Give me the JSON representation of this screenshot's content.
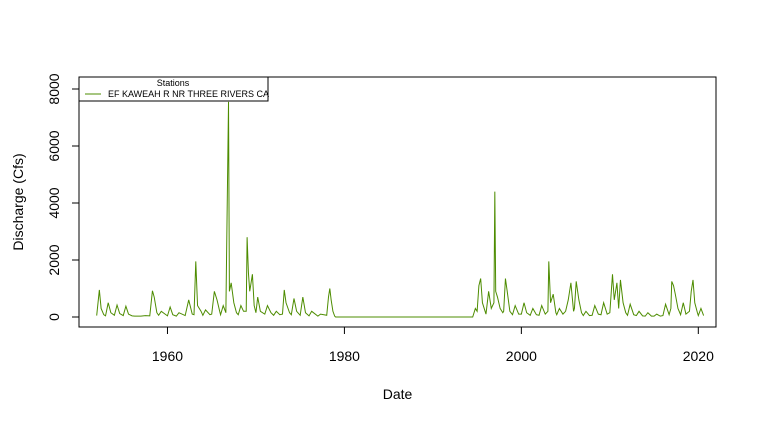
{
  "chart_data": {
    "type": "line",
    "title": "",
    "xlabel": "Date",
    "ylabel": "Discharge (Cfs)",
    "xlim": [
      1950,
      2022
    ],
    "ylim": [
      0,
      8000
    ],
    "x_ticks": [
      1960,
      1980,
      2000,
      2020
    ],
    "y_ticks": [
      0,
      2000,
      4000,
      6000,
      8000
    ],
    "grid": false,
    "legend": {
      "title": "Stations",
      "placement": "top-left",
      "entries": [
        "EF KAWEAH R NR THREE RIVERS CA"
      ]
    },
    "series": [
      {
        "name": "EF KAWEAH R NR THREE RIVERS CA",
        "color": "#4d8c00",
        "peaks": [
          [
            1952.0,
            50
          ],
          [
            1952.3,
            950
          ],
          [
            1952.5,
            300
          ],
          [
            1952.8,
            80
          ],
          [
            1953.0,
            40
          ],
          [
            1953.3,
            500
          ],
          [
            1953.6,
            150
          ],
          [
            1954.0,
            60
          ],
          [
            1954.3,
            420
          ],
          [
            1954.6,
            120
          ],
          [
            1955.0,
            50
          ],
          [
            1955.3,
            380
          ],
          [
            1955.6,
            100
          ],
          [
            1956.0,
            40
          ],
          [
            1956.3,
            30
          ],
          [
            1957.0,
            30
          ],
          [
            1957.5,
            50
          ],
          [
            1958.0,
            40
          ],
          [
            1958.3,
            920
          ],
          [
            1958.5,
            700
          ],
          [
            1958.8,
            150
          ],
          [
            1959.0,
            60
          ],
          [
            1959.3,
            200
          ],
          [
            1960.0,
            40
          ],
          [
            1960.3,
            350
          ],
          [
            1960.6,
            80
          ],
          [
            1961.0,
            30
          ],
          [
            1961.3,
            150
          ],
          [
            1962.0,
            50
          ],
          [
            1962.4,
            600
          ],
          [
            1962.8,
            100
          ],
          [
            1963.0,
            80
          ],
          [
            1963.2,
            1950
          ],
          [
            1963.4,
            400
          ],
          [
            1963.8,
            200
          ],
          [
            1964.0,
            60
          ],
          [
            1964.3,
            250
          ],
          [
            1964.8,
            80
          ],
          [
            1965.0,
            100
          ],
          [
            1965.3,
            900
          ],
          [
            1965.6,
            600
          ],
          [
            1965.9,
            200
          ],
          [
            1966.0,
            80
          ],
          [
            1966.3,
            400
          ],
          [
            1966.6,
            150
          ],
          [
            1966.9,
            7550
          ],
          [
            1967.0,
            900
          ],
          [
            1967.2,
            1200
          ],
          [
            1967.5,
            500
          ],
          [
            1967.8,
            150
          ],
          [
            1968.0,
            80
          ],
          [
            1968.3,
            400
          ],
          [
            1968.6,
            200
          ],
          [
            1968.9,
            200
          ],
          [
            1969.0,
            2800
          ],
          [
            1969.15,
            1550
          ],
          [
            1969.3,
            900
          ],
          [
            1969.6,
            1500
          ],
          [
            1969.8,
            400
          ],
          [
            1970.0,
            150
          ],
          [
            1970.2,
            700
          ],
          [
            1970.5,
            200
          ],
          [
            1971.0,
            100
          ],
          [
            1971.3,
            400
          ],
          [
            1971.7,
            150
          ],
          [
            1972.0,
            60
          ],
          [
            1972.3,
            200
          ],
          [
            1972.7,
            80
          ],
          [
            1973.0,
            100
          ],
          [
            1973.2,
            950
          ],
          [
            1973.4,
            500
          ],
          [
            1973.8,
            150
          ],
          [
            1974.0,
            80
          ],
          [
            1974.3,
            650
          ],
          [
            1974.6,
            200
          ],
          [
            1975.0,
            60
          ],
          [
            1975.3,
            700
          ],
          [
            1975.6,
            150
          ],
          [
            1976.0,
            40
          ],
          [
            1976.3,
            200
          ],
          [
            1977.0,
            30
          ],
          [
            1977.3,
            100
          ],
          [
            1978.0,
            60
          ],
          [
            1978.2,
            700
          ],
          [
            1978.35,
            1000
          ],
          [
            1978.5,
            600
          ],
          [
            1978.7,
            200
          ],
          [
            1978.9,
            30
          ],
          [
            1979.0,
            0
          ],
          [
            1994.5,
            0
          ],
          [
            1994.8,
            300
          ],
          [
            1995.0,
            200
          ],
          [
            1995.2,
            1100
          ],
          [
            1995.4,
            1350
          ],
          [
            1995.6,
            500
          ],
          [
            1995.9,
            200
          ],
          [
            1996.0,
            100
          ],
          [
            1996.3,
            900
          ],
          [
            1996.6,
            300
          ],
          [
            1996.9,
            500
          ],
          [
            1997.0,
            4400
          ],
          [
            1997.1,
            900
          ],
          [
            1997.3,
            700
          ],
          [
            1997.6,
            300
          ],
          [
            1997.9,
            150
          ],
          [
            1998.0,
            200
          ],
          [
            1998.2,
            1350
          ],
          [
            1998.4,
            900
          ],
          [
            1998.7,
            200
          ],
          [
            1999.0,
            80
          ],
          [
            1999.3,
            400
          ],
          [
            1999.7,
            100
          ],
          [
            2000.0,
            100
          ],
          [
            2000.3,
            500
          ],
          [
            2000.6,
            150
          ],
          [
            2001.0,
            60
          ],
          [
            2001.3,
            300
          ],
          [
            2001.7,
            80
          ],
          [
            2002.0,
            60
          ],
          [
            2002.3,
            400
          ],
          [
            2002.7,
            100
          ],
          [
            2003.0,
            200
          ],
          [
            2003.1,
            1950
          ],
          [
            2003.3,
            500
          ],
          [
            2003.6,
            800
          ],
          [
            2003.9,
            150
          ],
          [
            2004.0,
            80
          ],
          [
            2004.3,
            300
          ],
          [
            2004.7,
            100
          ],
          [
            2005.0,
            200
          ],
          [
            2005.3,
            600
          ],
          [
            2005.6,
            1200
          ],
          [
            2005.9,
            200
          ],
          [
            2006.0,
            300
          ],
          [
            2006.2,
            1250
          ],
          [
            2006.5,
            600
          ],
          [
            2006.8,
            150
          ],
          [
            2007.0,
            50
          ],
          [
            2007.3,
            200
          ],
          [
            2007.7,
            50
          ],
          [
            2008.0,
            60
          ],
          [
            2008.3,
            400
          ],
          [
            2008.7,
            100
          ],
          [
            2009.0,
            80
          ],
          [
            2009.3,
            500
          ],
          [
            2009.7,
            100
          ],
          [
            2010.0,
            150
          ],
          [
            2010.3,
            1500
          ],
          [
            2010.5,
            600
          ],
          [
            2010.8,
            1200
          ],
          [
            2011.0,
            300
          ],
          [
            2011.2,
            1300
          ],
          [
            2011.5,
            500
          ],
          [
            2011.8,
            150
          ],
          [
            2012.0,
            60
          ],
          [
            2012.3,
            450
          ],
          [
            2012.7,
            80
          ],
          [
            2013.0,
            50
          ],
          [
            2013.3,
            200
          ],
          [
            2013.7,
            40
          ],
          [
            2014.0,
            30
          ],
          [
            2014.3,
            150
          ],
          [
            2014.7,
            30
          ],
          [
            2015.0,
            30
          ],
          [
            2015.3,
            100
          ],
          [
            2015.7,
            30
          ],
          [
            2016.0,
            50
          ],
          [
            2016.3,
            450
          ],
          [
            2016.7,
            80
          ],
          [
            2016.9,
            300
          ],
          [
            2017.0,
            1250
          ],
          [
            2017.2,
            1100
          ],
          [
            2017.4,
            800
          ],
          [
            2017.7,
            300
          ],
          [
            2018.0,
            80
          ],
          [
            2018.3,
            500
          ],
          [
            2018.6,
            100
          ],
          [
            2019.0,
            200
          ],
          [
            2019.2,
            900
          ],
          [
            2019.4,
            1300
          ],
          [
            2019.6,
            500
          ],
          [
            2019.9,
            150
          ],
          [
            2020.0,
            50
          ],
          [
            2020.3,
            300
          ],
          [
            2020.6,
            50
          ]
        ]
      }
    ]
  }
}
